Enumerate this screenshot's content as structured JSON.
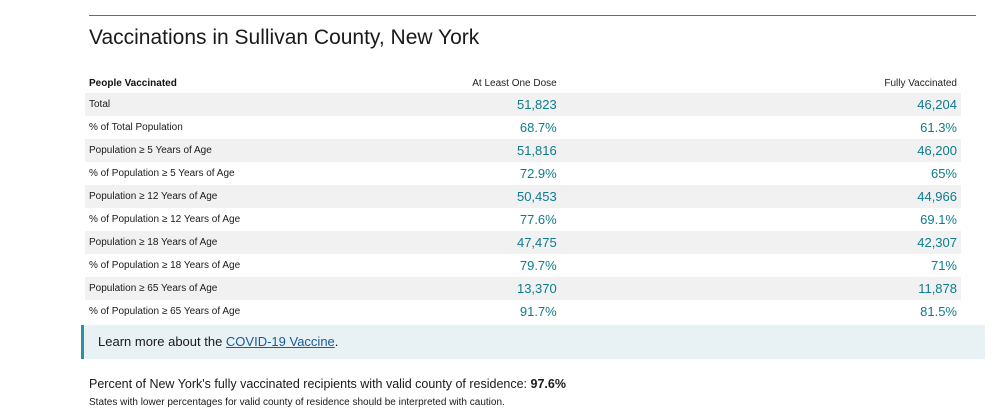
{
  "title": "Vaccinations in Sullivan County, New York",
  "table": {
    "headers": [
      "People Vaccinated",
      "At Least One Dose",
      "Fully Vaccinated"
    ],
    "rows": [
      {
        "label": "Total",
        "one_dose": "51,823",
        "fully": "46,204"
      },
      {
        "label": "% of Total Population",
        "one_dose": "68.7%",
        "fully": "61.3%"
      },
      {
        "label": "Population ≥ 5 Years of Age",
        "one_dose": "51,816",
        "fully": "46,200"
      },
      {
        "label": "% of Population ≥ 5 Years of Age",
        "one_dose": "72.9%",
        "fully": "65%"
      },
      {
        "label": "Population ≥ 12 Years of Age",
        "one_dose": "50,453",
        "fully": "44,966"
      },
      {
        "label": "% of Population ≥ 12 Years of Age",
        "one_dose": "77.6%",
        "fully": "69.1%"
      },
      {
        "label": "Population ≥ 18 Years of Age",
        "one_dose": "47,475",
        "fully": "42,307"
      },
      {
        "label": "% of Population ≥ 18 Years of Age",
        "one_dose": "79.7%",
        "fully": "71%"
      },
      {
        "label": "Population ≥ 65 Years of Age",
        "one_dose": "13,370",
        "fully": "11,878"
      },
      {
        "label": "% of Population ≥ 65 Years of Age",
        "one_dose": "91.7%",
        "fully": "81.5%"
      }
    ]
  },
  "learn_more": {
    "prefix": "Learn more about the ",
    "link_text": "COVID-19 Vaccine",
    "suffix": "."
  },
  "footnote": {
    "text": "Percent of New York's fully vaccinated recipients with valid county of residence: ",
    "value": "97.6%",
    "caution": "States with lower percentages for valid county of residence should be interpreted with caution."
  },
  "colors": {
    "value_teal": "#0d7c8c",
    "rule_blue": "#2f7fa3",
    "link_blue": "#1a5a9a",
    "callout_bg": "#e8f1f4",
    "stripe_gray": "#f1f1f1"
  }
}
